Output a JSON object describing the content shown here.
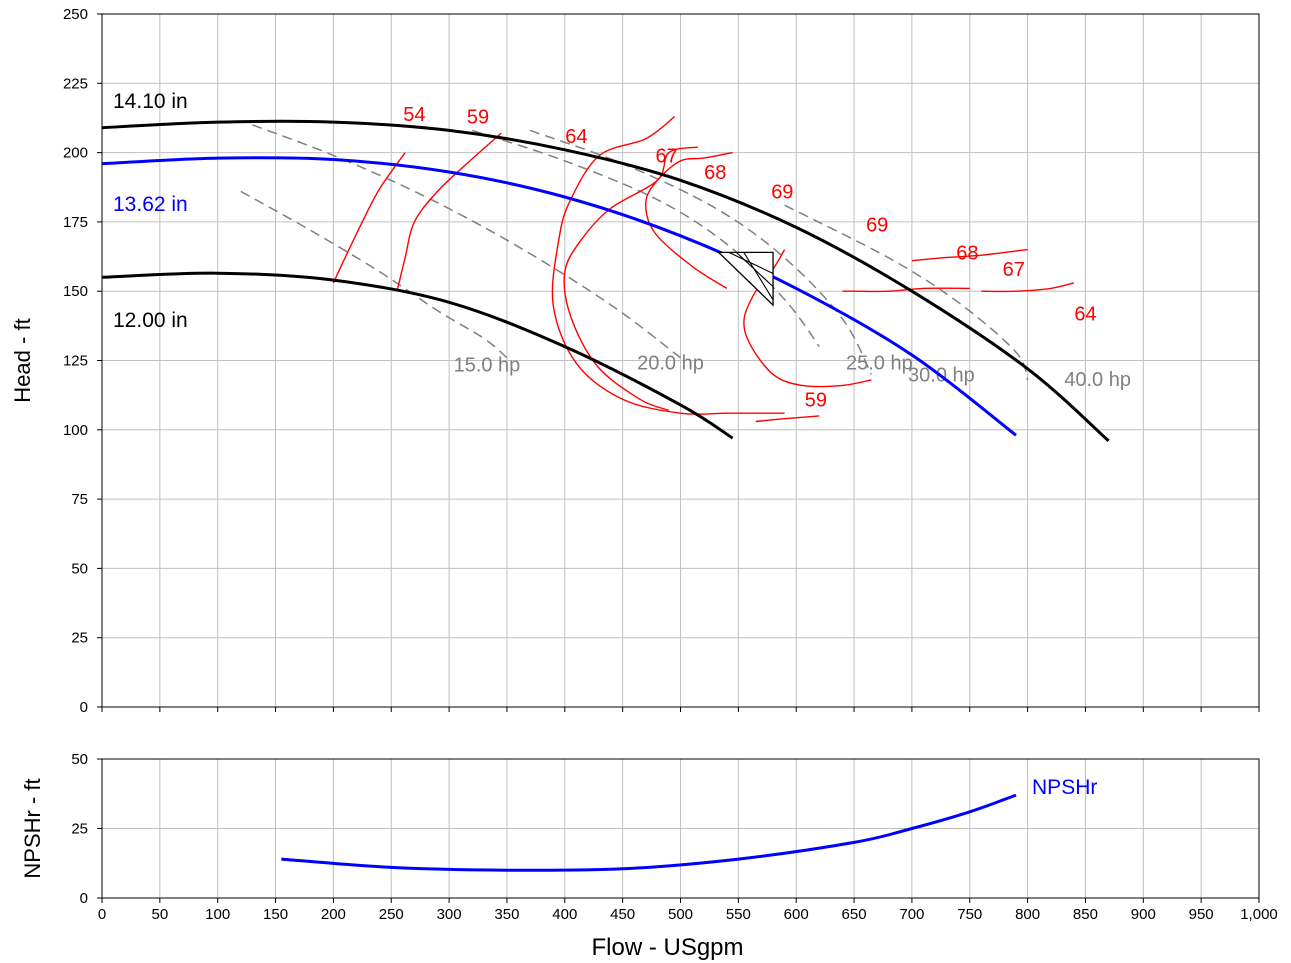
{
  "chart_data": {
    "type": "line",
    "x_axis": {
      "label": "Flow - USgpm",
      "range": [
        0,
        1000
      ],
      "ticks": [
        "0",
        "50",
        "100",
        "150",
        "200",
        "250",
        "300",
        "350",
        "400",
        "450",
        "500",
        "550",
        "600",
        "650",
        "700",
        "750",
        "800",
        "850",
        "900",
        "950",
        "1,000"
      ]
    },
    "grid": true,
    "colors": {
      "impeller_max_min": "#000000",
      "impeller_selected": "#0000ff",
      "efficiency": "#ff0000",
      "power": "#808080",
      "npsh": "#0000ff"
    },
    "head_plot": {
      "ylabel": "Head - ft",
      "ylim": [
        0,
        250
      ],
      "ticks": [
        "0",
        "25",
        "50",
        "75",
        "100",
        "125",
        "150",
        "175",
        "200",
        "225",
        "250"
      ],
      "impeller_curves": [
        {
          "name": "14.10 in",
          "color": "#000000",
          "x": [
            0,
            100,
            200,
            300,
            400,
            500,
            600,
            700,
            800,
            870
          ],
          "y": [
            209,
            211,
            211,
            208,
            201,
            190,
            173,
            150,
            122,
            96
          ]
        },
        {
          "name": "13.62 in",
          "color": "#0000ff",
          "x": [
            0,
            100,
            200,
            300,
            400,
            500,
            600,
            700,
            790
          ],
          "y": [
            196,
            198,
            197.5,
            193,
            184,
            170,
            151,
            127,
            98
          ]
        },
        {
          "name": "12.00 in",
          "color": "#000000",
          "x": [
            0,
            100,
            200,
            300,
            400,
            500,
            545
          ],
          "y": [
            155,
            156.5,
            154,
            146,
            130,
            109,
            97
          ]
        }
      ],
      "power_curves": [
        {
          "name": "15.0 hp",
          "x": [
            120,
            180,
            240,
            290,
            330,
            350
          ],
          "y": [
            186,
            172,
            157,
            143,
            133,
            126
          ]
        },
        {
          "name": "20.0 hp",
          "x": [
            130,
            200,
            280,
            360,
            440,
            500
          ],
          "y": [
            210,
            199,
            184,
            166,
            145,
            126
          ]
        },
        {
          "name": "25.0 hp",
          "x": [
            320,
            400,
            480,
            540,
            590,
            620
          ],
          "y": [
            208,
            197,
            183,
            167,
            147,
            130
          ]
        },
        {
          "name": "30.0 hp",
          "x": [
            370,
            450,
            530,
            590,
            640,
            665
          ],
          "y": [
            208,
            196,
            180,
            162,
            140,
            120
          ]
        },
        {
          "name": "40.0 hp",
          "x": [
            590,
            680,
            740,
            790,
            800
          ],
          "y": [
            181,
            162,
            146,
            128,
            118
          ]
        }
      ],
      "efficiency_labels": [
        {
          "text": "54",
          "x": 270,
          "y": 214
        },
        {
          "text": "59",
          "x": 325,
          "y": 213
        },
        {
          "text": "64",
          "x": 410,
          "y": 206
        },
        {
          "text": "67",
          "x": 488,
          "y": 199
        },
        {
          "text": "68",
          "x": 530,
          "y": 193
        },
        {
          "text": "69",
          "x": 588,
          "y": 186
        },
        {
          "text": "69",
          "x": 670,
          "y": 174
        },
        {
          "text": "68",
          "x": 748,
          "y": 164
        },
        {
          "text": "67",
          "x": 788,
          "y": 158
        },
        {
          "text": "64",
          "x": 850,
          "y": 142
        },
        {
          "text": "59",
          "x": 617,
          "y": 111
        }
      ],
      "efficiency_curves": [
        {
          "x": [
            200,
            210,
            225,
            240,
            262
          ],
          "y": [
            153,
            162,
            175,
            187,
            200
          ]
        },
        {
          "x": [
            255,
            262,
            270,
            290,
            318,
            345
          ],
          "y": [
            150,
            162,
            175,
            186,
            197,
            207
          ]
        },
        {
          "x": [
            590,
            570,
            540,
            500,
            450,
            410,
            390,
            395,
            405,
            430,
            470,
            495
          ],
          "y": [
            106,
            106,
            106,
            106,
            111,
            124,
            145,
            169,
            183,
            199,
            205,
            213
          ]
        },
        {
          "x": [
            490,
            465,
            428,
            405,
            400,
            415,
            440,
            480,
            490,
            515
          ],
          "y": [
            107,
            111,
            123,
            141,
            157,
            169,
            180,
            190,
            200,
            202
          ]
        },
        {
          "x": [
            540,
            510,
            478,
            470,
            480,
            500,
            520,
            545
          ],
          "y": [
            151,
            159,
            171,
            182,
            190,
            197,
            198,
            200
          ]
        },
        {
          "x": [
            590,
            580,
            565,
            555,
            560,
            580,
            605,
            640,
            665
          ],
          "y": [
            165,
            158,
            150,
            140,
            131,
            120,
            116,
            116,
            118
          ]
        },
        {
          "x": [
            640,
            650,
            680,
            710,
            750
          ],
          "y": [
            150,
            150,
            150,
            151,
            151
          ]
        },
        {
          "x": [
            700,
            725,
            760,
            800
          ],
          "y": [
            161,
            162,
            163,
            165
          ]
        },
        {
          "x": [
            760,
            790,
            820,
            840
          ],
          "y": [
            150,
            150,
            151,
            153
          ]
        },
        {
          "x": [
            565,
            590,
            620
          ],
          "y": [
            103,
            104,
            105
          ]
        }
      ],
      "bep_marker": {
        "x": [
          533,
          580
        ],
        "y": [
          164,
          145
        ]
      }
    },
    "npsh_plot": {
      "ylabel": "NPSHr - ft",
      "ylim": [
        0,
        50
      ],
      "ticks": [
        "0",
        "25",
        "50"
      ],
      "series": [
        {
          "name": "NPSHr",
          "color": "#0000ff",
          "x": [
            155,
            250,
            350,
            450,
            550,
            650,
            700,
            750,
            790
          ],
          "y": [
            14,
            11,
            10,
            10.5,
            14,
            20,
            25,
            31,
            37
          ]
        }
      ]
    }
  }
}
